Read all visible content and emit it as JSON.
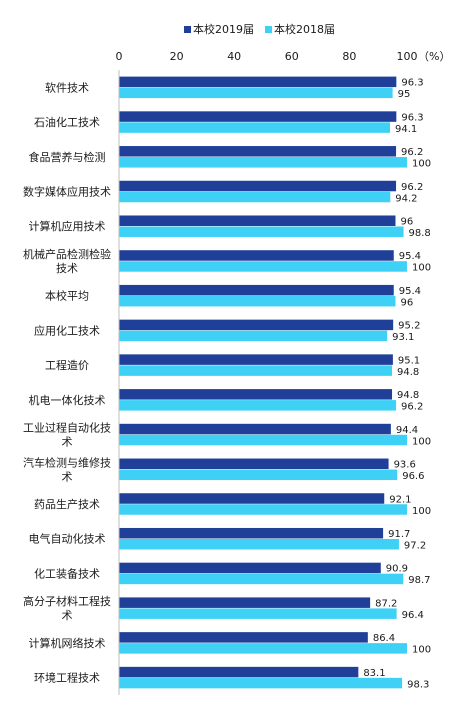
{
  "chart_data": {
    "type": "bar",
    "orientation": "horizontal",
    "title": "",
    "xlabel": "",
    "ylabel": "",
    "unit": "（%）",
    "xlim": [
      0,
      100
    ],
    "xticks": [
      0,
      20,
      40,
      60,
      80,
      100
    ],
    "grid": false,
    "legend_position": "top",
    "categories": [
      [
        "软件技术"
      ],
      [
        "石油化工技术"
      ],
      [
        "食品营养与检测"
      ],
      [
        "数字媒体应用技术"
      ],
      [
        "计算机应用技术"
      ],
      [
        "机械产品检测检验",
        "技术"
      ],
      [
        "本校平均"
      ],
      [
        "应用化工技术"
      ],
      [
        "工程造价"
      ],
      [
        "机电一体化技术"
      ],
      [
        "工业过程自动化技",
        "术"
      ],
      [
        "汽车检测与维修技",
        "术"
      ],
      [
        "药品生产技术"
      ],
      [
        "电气自动化技术"
      ],
      [
        "化工装备技术"
      ],
      [
        "高分子材料工程技",
        "术"
      ],
      [
        "计算机网络技术"
      ],
      [
        "环境工程技术"
      ]
    ],
    "series": [
      {
        "name": "本校2019届",
        "color": "#203f99",
        "values": [
          96.3,
          96.3,
          96.2,
          96.2,
          96,
          95.4,
          95.4,
          95.2,
          95.1,
          94.8,
          94.4,
          93.6,
          92.1,
          91.7,
          90.9,
          87.2,
          86.4,
          83.1
        ]
      },
      {
        "name": "本校2018届",
        "color": "#3fd0f5",
        "values": [
          95,
          94.1,
          100,
          94.2,
          98.8,
          100,
          96,
          93.1,
          94.8,
          96.2,
          100,
          96.6,
          100,
          97.2,
          98.7,
          96.4,
          100,
          98.3
        ]
      }
    ]
  }
}
